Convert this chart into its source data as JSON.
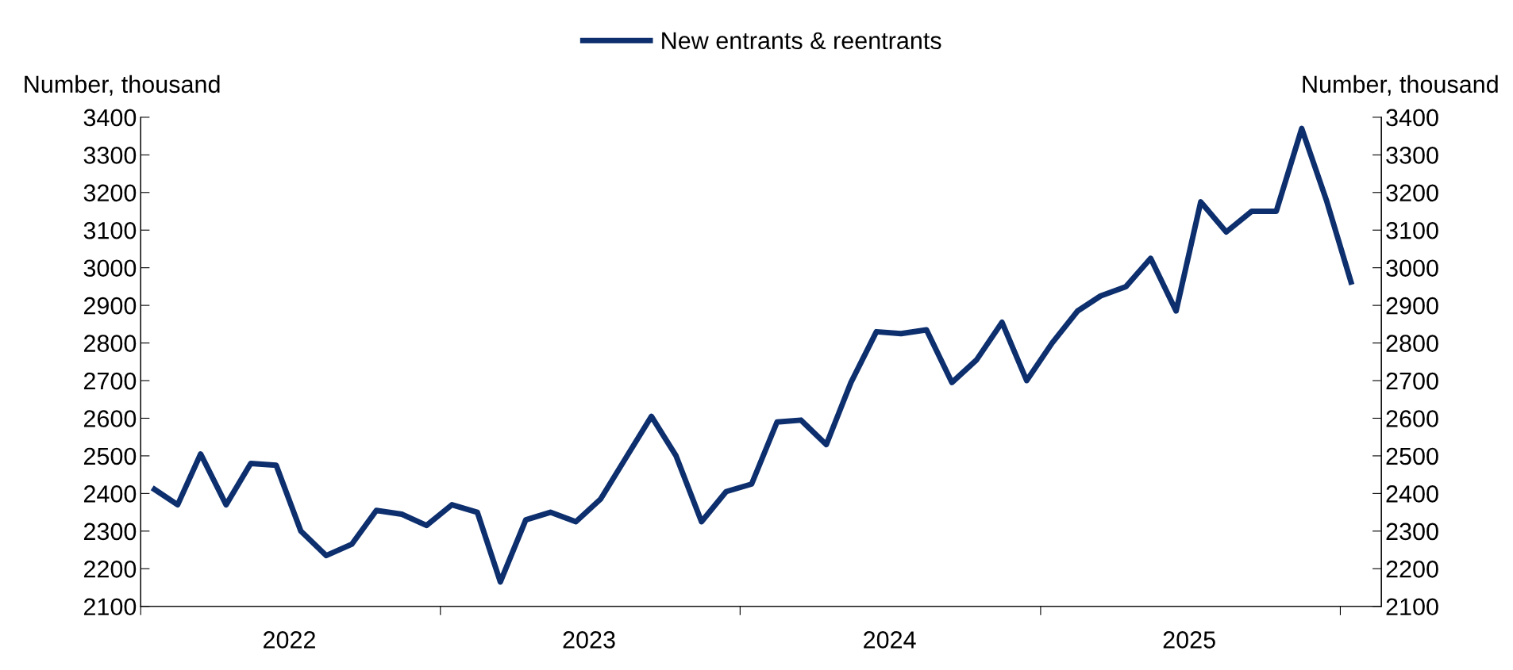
{
  "chart_data": {
    "type": "line",
    "ylabel": "Number, thousand",
    "y2label": "Number, thousand",
    "x": [
      "2022-01-15",
      "2022-02-15",
      "2022-03-15",
      "2022-04-15",
      "2022-05-15",
      "2022-06-15",
      "2022-07-15",
      "2022-08-15",
      "2022-09-15",
      "2022-10-15",
      "2022-11-15",
      "2022-12-15",
      "2023-01-15",
      "2023-02-15",
      "2023-03-15",
      "2023-04-15",
      "2023-05-15",
      "2023-06-15",
      "2023-07-15",
      "2023-08-15",
      "2023-09-15",
      "2023-10-15",
      "2023-11-15",
      "2023-12-15",
      "2024-01-15",
      "2024-02-15",
      "2024-03-15",
      "2024-04-15",
      "2024-05-15",
      "2024-06-15",
      "2024-07-15",
      "2024-08-15",
      "2024-09-15",
      "2024-10-15",
      "2024-11-15",
      "2024-12-15",
      "2025-01-15",
      "2025-02-15",
      "2025-03-15",
      "2025-04-15",
      "2025-05-15",
      "2025-06-15",
      "2025-07-15",
      "2025-08-15",
      "2025-09-15",
      "2025-10-15",
      "2025-11-15",
      "2025-12-15",
      "2026-01-15"
    ],
    "series": [
      {
        "name": "New entrants & reentrants",
        "color": "#0d2f6e",
        "values": [
          2415,
          2370,
          2505,
          2370,
          2480,
          2475,
          2300,
          2235,
          2265,
          2355,
          2345,
          2315,
          2370,
          2350,
          2165,
          2330,
          2350,
          2325,
          2385,
          2495,
          2605,
          2500,
          2325,
          2405,
          2425,
          2590,
          2595,
          2530,
          2695,
          2830,
          2825,
          2835,
          2695,
          2755,
          2855,
          2700,
          2800,
          2885,
          2925,
          2950,
          3025,
          2885,
          3175,
          3095,
          3150,
          3150,
          3370,
          3180,
          2955
        ]
      }
    ],
    "xlim": [
      "2022-01-01",
      "2026-02-20"
    ],
    "xticks": [
      {
        "value": "2022-01-01",
        "label": null
      },
      {
        "value": "2022-07-01",
        "label": "2022"
      },
      {
        "value": "2023-01-01",
        "label": null
      },
      {
        "value": "2023-07-01",
        "label": "2023"
      },
      {
        "value": "2024-01-01",
        "label": null
      },
      {
        "value": "2024-07-01",
        "label": "2024"
      },
      {
        "value": "2025-01-01",
        "label": null
      },
      {
        "value": "2025-07-01",
        "label": "2025"
      },
      {
        "value": "2026-01-01",
        "label": null
      }
    ],
    "ylim": [
      2100,
      3400
    ],
    "yticks": [
      2100,
      2200,
      2300,
      2400,
      2500,
      2600,
      2700,
      2800,
      2900,
      3000,
      3100,
      3200,
      3300,
      3400
    ],
    "y2lim": [
      2100,
      3400
    ],
    "y2ticks": [
      2100,
      2200,
      2300,
      2400,
      2500,
      2600,
      2700,
      2800,
      2900,
      3000,
      3100,
      3200,
      3300,
      3400
    ],
    "legend": "top",
    "grid": false,
    "marker": "none",
    "line_style": "solid"
  }
}
